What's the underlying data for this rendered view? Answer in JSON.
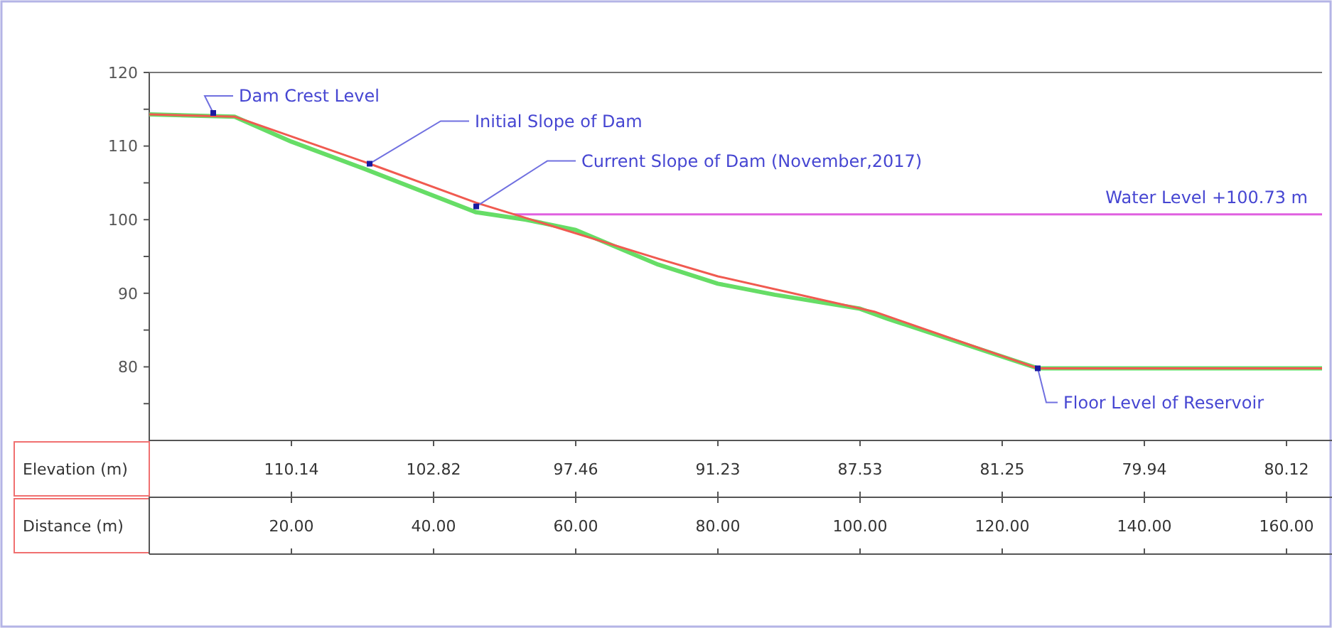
{
  "chart_data": {
    "type": "line",
    "xlim": [
      0,
      165
    ],
    "ylim": [
      70,
      120
    ],
    "yticks": [
      {
        "value": 75,
        "label": null
      },
      80,
      {
        "value": 85,
        "label": null
      },
      90,
      {
        "value": 95,
        "label": null
      },
      100,
      {
        "value": 105,
        "label": null
      },
      110,
      {
        "value": 115,
        "label": null
      },
      120
    ],
    "xlabel": "Distance (m)",
    "xticks": [
      {
        "value": 20,
        "label": "20.00"
      },
      {
        "value": 40,
        "label": "40.00"
      },
      {
        "value": 60,
        "label": "60.00"
      },
      {
        "value": 80,
        "label": "80.00"
      },
      {
        "value": 100,
        "label": "100.00"
      },
      {
        "value": 120,
        "label": "120.00"
      },
      {
        "value": 140,
        "label": "140.00"
      },
      {
        "value": 160,
        "label": "160.00"
      }
    ],
    "grid": false,
    "marker": "none",
    "line_style": "solid",
    "series": [
      {
        "color": "#66dd66",
        "x": [
          0,
          12,
          20,
          30,
          46,
          53,
          60,
          71.6,
          80,
          88,
          100,
          104,
          125,
          165
        ],
        "values": [
          114.3,
          114.0,
          110.6,
          107.0,
          101.0,
          100.0,
          98.6,
          93.9,
          91.3,
          89.8,
          87.9,
          86.5,
          79.8,
          79.8
        ]
      },
      {
        "color": "#f05a50",
        "x": [
          0,
          12,
          31,
          46,
          71.6,
          80,
          102,
          125,
          165
        ],
        "values": [
          114.3,
          114.0,
          107.6,
          102.3,
          94.7,
          92.3,
          87.5,
          79.8,
          79.8
        ]
      }
    ],
    "ref_lines": [
      {
        "axis": "y",
        "value": 100.73,
        "label": "Water Level +100.73 m",
        "color": "#e060e0"
      }
    ],
    "annotations": [
      {
        "text": "Dam Crest Level",
        "x": 9,
        "y": 114.5
      },
      {
        "text": "Initial Slope of Dam",
        "x": 31,
        "y": 107.6
      },
      {
        "text": "Current Slope of Dam (November,2017)",
        "x": 46,
        "y": 101.8
      },
      {
        "text": "Floor Level of Reservoir",
        "x": 125,
        "y": 79.8
      },
      "Elevation (m)",
      "110.14",
      "102.82",
      "97.46",
      "91.23",
      "87.53",
      "81.25",
      "79.94",
      "80.12"
    ]
  }
}
